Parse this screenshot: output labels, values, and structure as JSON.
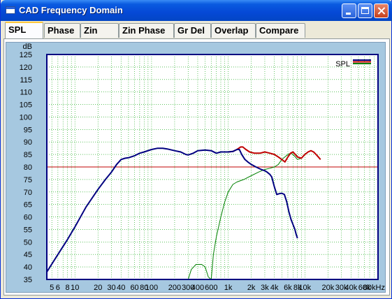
{
  "window": {
    "title": "CAD Frequency Domain"
  },
  "tabs": [
    {
      "label": "SPL",
      "active": true
    },
    {
      "label": "Phase",
      "active": false
    },
    {
      "label": "Zin",
      "active": false
    },
    {
      "label": "Zin Phase",
      "active": false
    },
    {
      "label": "Gr Del",
      "active": false
    },
    {
      "label": "Overlap",
      "active": false
    },
    {
      "label": "Compare",
      "active": false
    }
  ],
  "chart_data": {
    "type": "line",
    "ylabel": "dB",
    "xlabel": "",
    "x_scale": "log",
    "xlim": [
      4.3,
      90000
    ],
    "ylim": [
      35,
      125
    ],
    "y_ticks": [
      35,
      40,
      45,
      50,
      55,
      60,
      65,
      70,
      75,
      80,
      85,
      90,
      95,
      100,
      105,
      110,
      115,
      120,
      125
    ],
    "x_ticks": [
      {
        "v": 5,
        "label": "5"
      },
      {
        "v": 6,
        "label": "6"
      },
      {
        "v": 8,
        "label": "8"
      },
      {
        "v": 10,
        "label": "10"
      },
      {
        "v": 20,
        "label": "20"
      },
      {
        "v": 30,
        "label": "30"
      },
      {
        "v": 40,
        "label": "40"
      },
      {
        "v": 60,
        "label": "60"
      },
      {
        "v": 80,
        "label": "80"
      },
      {
        "v": 100,
        "label": "100"
      },
      {
        "v": 200,
        "label": "200"
      },
      {
        "v": 300,
        "label": "300"
      },
      {
        "v": 400,
        "label": "400"
      },
      {
        "v": 600,
        "label": "600"
      },
      {
        "v": 1000,
        "label": "1k"
      },
      {
        "v": 2000,
        "label": "2k"
      },
      {
        "v": 3000,
        "label": "3k"
      },
      {
        "v": 4000,
        "label": "4k"
      },
      {
        "v": 6000,
        "label": "6k"
      },
      {
        "v": 8000,
        "label": "8k"
      },
      {
        "v": 10000,
        "label": "10k"
      },
      {
        "v": 20000,
        "label": "20k"
      },
      {
        "v": 30000,
        "label": "30k"
      },
      {
        "v": 40000,
        "label": "40k"
      },
      {
        "v": 60000,
        "label": "60k"
      },
      {
        "v": 80000,
        "label": "80kHz"
      }
    ],
    "reference_line": {
      "y": 80,
      "color": "#C00000"
    },
    "legend": {
      "label": "SPL",
      "placement": "top-right"
    },
    "series": [
      {
        "color": "#008000",
        "width": 1,
        "points": [
          [
            4.3,
            35
          ],
          [
            300,
            35
          ],
          [
            330,
            39
          ],
          [
            380,
            41
          ],
          [
            450,
            41
          ],
          [
            500,
            40
          ],
          [
            550,
            36
          ],
          [
            600,
            35
          ],
          [
            640,
            45
          ],
          [
            700,
            52
          ],
          [
            800,
            60
          ],
          [
            900,
            66
          ],
          [
            1000,
            70
          ],
          [
            1150,
            73
          ],
          [
            1300,
            74
          ],
          [
            1600,
            75
          ],
          [
            2000,
            76.5
          ],
          [
            2500,
            78
          ],
          [
            3000,
            79
          ],
          [
            3500,
            79.5
          ],
          [
            4000,
            80
          ],
          [
            4500,
            81
          ],
          [
            5000,
            83
          ],
          [
            6000,
            85
          ],
          [
            6500,
            85.5
          ],
          [
            7000,
            85
          ],
          [
            7500,
            84
          ],
          [
            8000,
            83
          ],
          [
            9000,
            83.5
          ],
          [
            10000,
            85
          ],
          [
            11000,
            86
          ],
          [
            12000,
            86.5
          ],
          [
            13000,
            86
          ],
          [
            14000,
            85
          ],
          [
            15000,
            84
          ],
          [
            16000,
            83
          ]
        ]
      },
      {
        "color": "#C00000",
        "width": 2,
        "points": [
          [
            850,
            86
          ],
          [
            1000,
            86
          ],
          [
            1150,
            86.2
          ],
          [
            1300,
            87
          ],
          [
            1450,
            88
          ],
          [
            1550,
            88
          ],
          [
            1700,
            87
          ],
          [
            1900,
            86
          ],
          [
            2200,
            85.5
          ],
          [
            2600,
            85.5
          ],
          [
            3000,
            86
          ],
          [
            3500,
            85.5
          ],
          [
            4000,
            85
          ],
          [
            4500,
            84
          ],
          [
            5000,
            83
          ],
          [
            5500,
            82
          ],
          [
            6000,
            84
          ],
          [
            6500,
            85.5
          ],
          [
            7000,
            86
          ],
          [
            7500,
            85
          ],
          [
            8000,
            84
          ],
          [
            9000,
            83.5
          ],
          [
            10000,
            85
          ],
          [
            11000,
            86
          ],
          [
            12000,
            86.5
          ],
          [
            13000,
            86
          ],
          [
            14000,
            85
          ],
          [
            15000,
            84
          ],
          [
            16000,
            83
          ]
        ]
      },
      {
        "color": "#000080",
        "width": 2,
        "points": [
          [
            4.3,
            38
          ],
          [
            6,
            45
          ],
          [
            8,
            51
          ],
          [
            10,
            56
          ],
          [
            14,
            64
          ],
          [
            20,
            71
          ],
          [
            25,
            75
          ],
          [
            30,
            78
          ],
          [
            35,
            81
          ],
          [
            40,
            83
          ],
          [
            45,
            83.5
          ],
          [
            50,
            83.7
          ],
          [
            60,
            84.5
          ],
          [
            70,
            85.5
          ],
          [
            80,
            86
          ],
          [
            100,
            87
          ],
          [
            120,
            87.5
          ],
          [
            140,
            87.5
          ],
          [
            160,
            87.2
          ],
          [
            200,
            86.5
          ],
          [
            240,
            86
          ],
          [
            280,
            85
          ],
          [
            300,
            84.8
          ],
          [
            350,
            85.5
          ],
          [
            400,
            86.5
          ],
          [
            500,
            86.8
          ],
          [
            600,
            86.5
          ],
          [
            700,
            85.5
          ],
          [
            800,
            86
          ],
          [
            900,
            86
          ],
          [
            1000,
            86
          ],
          [
            1150,
            86.2
          ],
          [
            1300,
            87
          ],
          [
            1400,
            87
          ],
          [
            1500,
            85
          ],
          [
            1650,
            83
          ],
          [
            1800,
            82
          ],
          [
            2000,
            81
          ],
          [
            2300,
            80
          ],
          [
            2700,
            79
          ],
          [
            3000,
            78.5
          ],
          [
            3200,
            78
          ],
          [
            3500,
            77
          ],
          [
            3700,
            76
          ],
          [
            4000,
            72
          ],
          [
            4300,
            69
          ],
          [
            4600,
            69.3
          ],
          [
            5000,
            69.5
          ],
          [
            5400,
            69
          ],
          [
            5800,
            66
          ],
          [
            6200,
            62
          ],
          [
            6600,
            59
          ],
          [
            7000,
            57
          ],
          [
            7400,
            55
          ],
          [
            7700,
            53
          ],
          [
            8000,
            51.5
          ]
        ]
      }
    ]
  }
}
